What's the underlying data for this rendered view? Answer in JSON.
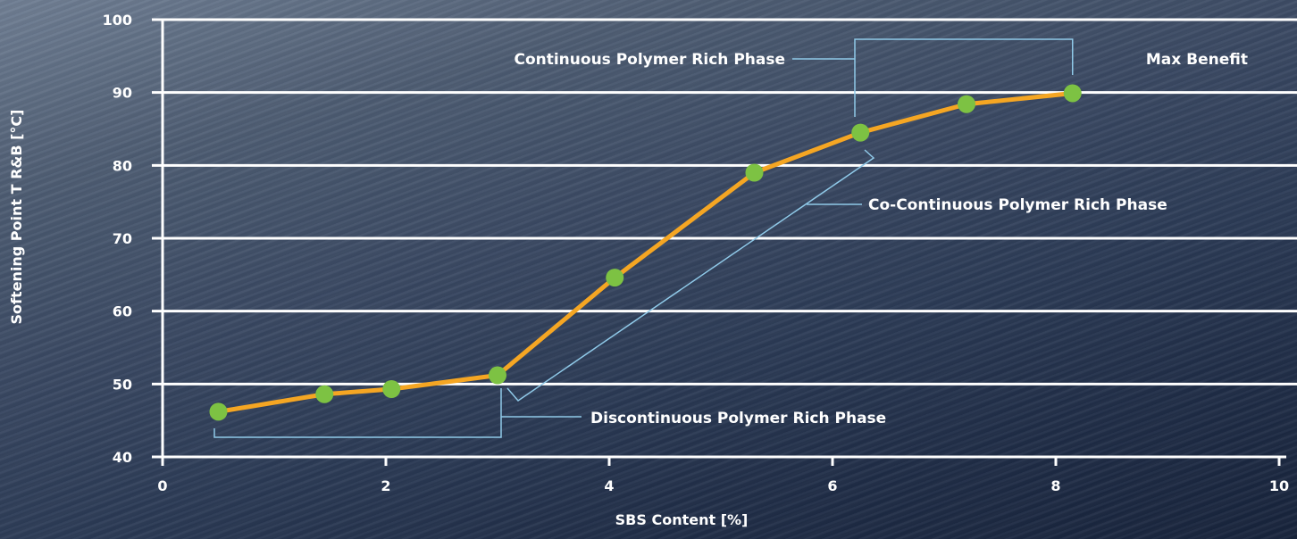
{
  "chart_data": {
    "type": "line",
    "title": "",
    "xlabel": "SBS Content [%]",
    "ylabel": "Softening Point T R&B [°C]",
    "xlim": [
      0,
      10
    ],
    "ylim": [
      40,
      100
    ],
    "x_ticks": [
      0,
      2,
      4,
      6,
      8,
      10
    ],
    "y_ticks": [
      40,
      50,
      60,
      70,
      80,
      90,
      100
    ],
    "grid": "horizontal",
    "series": [
      {
        "x": [
          0.5,
          1.45,
          2.05,
          3.0,
          4.05,
          5.3,
          6.25,
          7.2,
          8.15
        ],
        "y": [
          46.2,
          48.6,
          49.3,
          51.2,
          64.6,
          79.0,
          84.5,
          88.4,
          89.9
        ]
      }
    ],
    "annotations": {
      "continuous": "Continuous Polymer Rich Phase",
      "max_benefit": "Max Benefit",
      "co_continuous": "Co-Continuous Polymer Rich Phase",
      "discontinuous": "Discontinuous Polymer Rich Phase"
    },
    "colors": {
      "line": "#f5a623",
      "marker": "#7dc243",
      "annotation_line": "#8fc9e8",
      "grid": "#ffffff"
    }
  }
}
